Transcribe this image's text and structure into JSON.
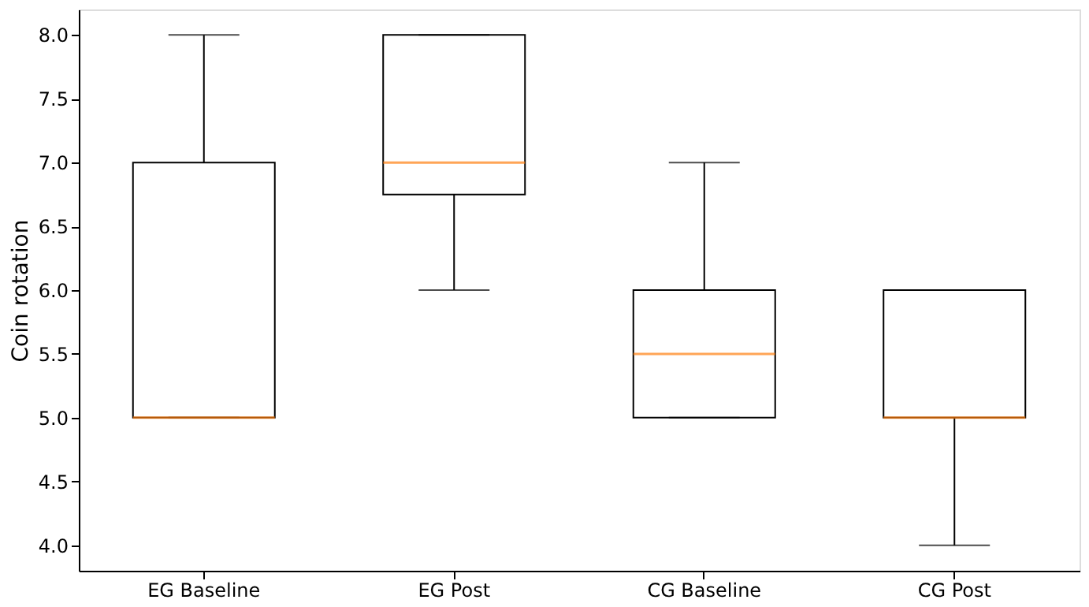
{
  "chart_data": {
    "type": "box",
    "ylabel": "Coin rotation",
    "categories": [
      "EG Baseline",
      "EG Post",
      "CG Baseline",
      "CG Post"
    ],
    "boxes": [
      {
        "low": 5,
        "q1": 5,
        "median": 5,
        "q3": 7,
        "high": 8
      },
      {
        "low": 6,
        "q1": 6.75,
        "median": 7,
        "q3": 8,
        "high": 8
      },
      {
        "low": 5,
        "q1": 5,
        "median": 5.5,
        "q3": 6,
        "high": 7
      },
      {
        "low": 4,
        "q1": 5,
        "median": 5,
        "q3": 6,
        "high": 6
      }
    ],
    "ylim": [
      3.8,
      8.2
    ],
    "yticks": [
      {
        "value": 4,
        "label": "4.0"
      },
      {
        "value": 4.5,
        "label": "4.5"
      },
      {
        "value": 5,
        "label": "5.0"
      },
      {
        "value": 5.5,
        "label": "5.5"
      },
      {
        "value": 6,
        "label": "6.0"
      },
      {
        "value": 6.5,
        "label": "6.5"
      },
      {
        "value": 7,
        "label": "7.0"
      },
      {
        "value": 7.5,
        "label": "7.5"
      },
      {
        "value": 8,
        "label": "8.0"
      }
    ],
    "grid": false
  }
}
